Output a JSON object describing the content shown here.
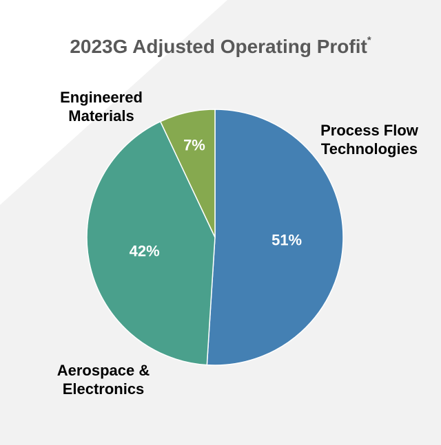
{
  "colors": {
    "background_band": "#f2f2f2",
    "process_flow": "#4480b3",
    "aerospace": "#4aa08c",
    "engineered": "#86a94f",
    "slice_text": "#ffffff",
    "title_text": "#595959"
  },
  "chart_data": {
    "type": "pie",
    "title": "2023G Adjusted Operating Profit",
    "title_footnote_mark": "*",
    "slices": [
      {
        "label": "Process Flow Technologies",
        "value": 51,
        "value_label": "51%",
        "color": "#4480b3"
      },
      {
        "label": "Aerospace & Electronics",
        "value": 42,
        "value_label": "42%",
        "color": "#4aa08c"
      },
      {
        "label": "Engineered Materials",
        "value": 7,
        "value_label": "7%",
        "color": "#86a94f"
      }
    ],
    "legend": "none",
    "labels_outside": {
      "process_flow": [
        "Process Flow",
        "Technologies"
      ],
      "aerospace": [
        "Aerospace &",
        "Electronics"
      ],
      "engineered": [
        "Engineered",
        "Materials"
      ]
    }
  }
}
